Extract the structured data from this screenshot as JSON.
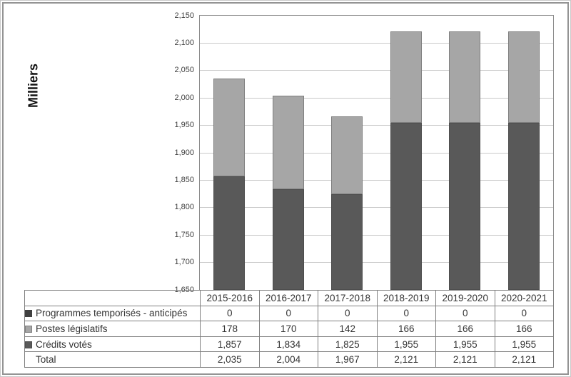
{
  "chart_data": {
    "type": "bar",
    "stacked": true,
    "title": "",
    "xlabel": "",
    "ylabel": "Milliers",
    "ylim": [
      1650,
      2150
    ],
    "ytick_step": 50,
    "yticks": [
      1650,
      1700,
      1750,
      1800,
      1850,
      1900,
      1950,
      2000,
      2050,
      2100,
      2150
    ],
    "grid": true,
    "legend_position": "table-left",
    "number_format": "thousands-comma",
    "categories": [
      "2015-2016",
      "2016-2017",
      "2017-2018",
      "2018-2019",
      "2019-2020",
      "2020-2021"
    ],
    "series": [
      {
        "key": "programmes-temporises-anticipes",
        "name": "Programmes temporisés - anticipés",
        "values": [
          0,
          0,
          0,
          0,
          0,
          0
        ],
        "color": "#404040",
        "marker_border": "#404040"
      },
      {
        "key": "postes-legislatifs",
        "name": "Postes législatifs",
        "values": [
          178,
          170,
          142,
          166,
          166,
          166
        ],
        "color": "#a6a6a6",
        "marker_border": "#7f7f7f"
      },
      {
        "key": "credits-votes",
        "name": "Crédits votés",
        "values": [
          1857,
          1834,
          1825,
          1955,
          1955,
          1955
        ],
        "color": "#595959",
        "marker_border": "#4d4d4d"
      }
    ],
    "total_row": {
      "label": "Total",
      "values": [
        2035,
        2004,
        1967,
        2121,
        2121,
        2121
      ]
    }
  },
  "colors": {
    "grid": "#c9c9c9",
    "plot_border": "#8c8c8c",
    "table_border": "#7f7f7f",
    "text": "#333333",
    "tick_text": "#404040",
    "frame": "#949494",
    "background": "#ffffff"
  }
}
